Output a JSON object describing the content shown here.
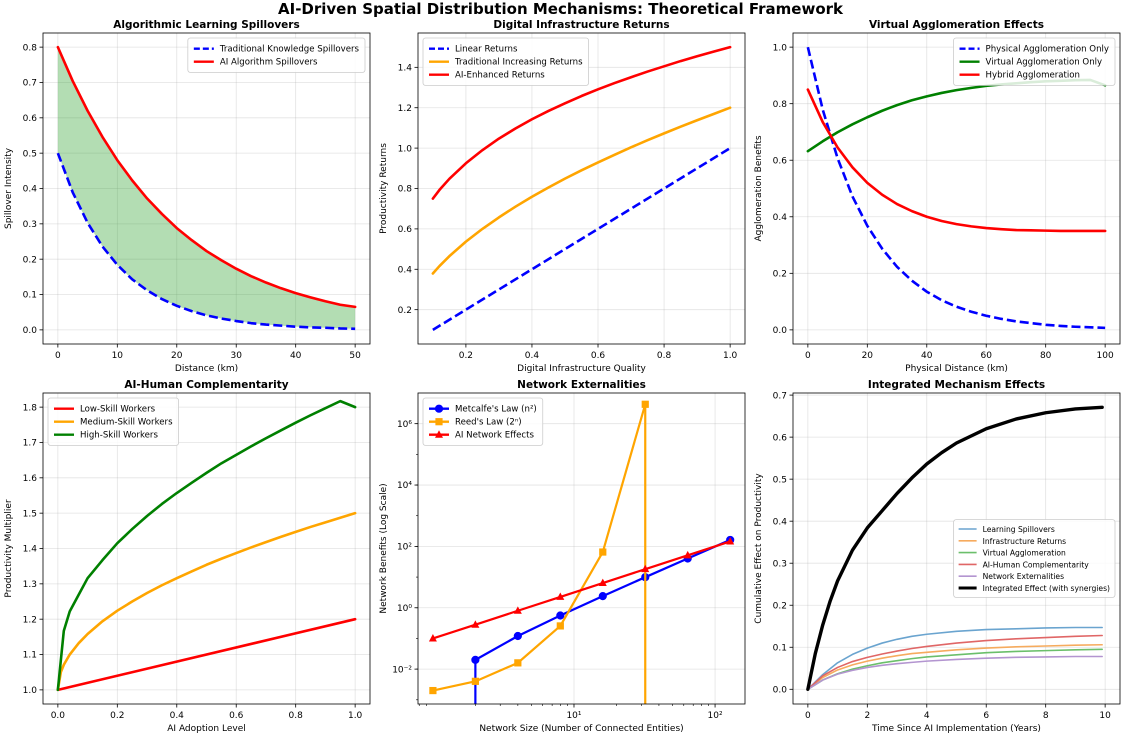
{
  "figure": {
    "suptitle": "AI-Driven Spatial Distribution Mechanisms: Theoretical Framework"
  },
  "chart_data": [
    {
      "id": "p1",
      "type": "line",
      "title": "Algorithmic Learning Spillovers",
      "xlabel": "Distance (km)",
      "ylabel": "Spillover Intensity",
      "xlim": [
        -2.5,
        52.5
      ],
      "ylim": [
        -0.04,
        0.84
      ],
      "xticks": [
        0,
        10,
        20,
        30,
        40,
        50
      ],
      "yticks": [
        0.0,
        0.1,
        0.2,
        0.3,
        0.4,
        0.5,
        0.6,
        0.7,
        0.8
      ],
      "grid": true,
      "legend_position": "upper-right",
      "fill_between": {
        "lower": "Traditional Knowledge Spillovers",
        "upper": "AI Algorithm Spillovers",
        "color": "#2ca02c"
      },
      "series": [
        {
          "name": "Traditional Knowledge Spillovers",
          "color": "#0000ff",
          "dash": true,
          "x": [
            0,
            2.5,
            5,
            7.5,
            10,
            12.5,
            15,
            17.5,
            20,
            22.5,
            25,
            27.5,
            30,
            32.5,
            35,
            37.5,
            40,
            42.5,
            45,
            47.5,
            50
          ],
          "values": [
            0.5,
            0.389,
            0.303,
            0.236,
            0.184,
            0.143,
            0.112,
            0.087,
            0.068,
            0.053,
            0.041,
            0.032,
            0.025,
            0.019,
            0.015,
            0.012,
            0.009,
            0.007,
            0.006,
            0.004,
            0.003
          ]
        },
        {
          "name": "AI Algorithm Spillovers",
          "color": "#ff0000",
          "dash": false,
          "x": [
            0,
            2.5,
            5,
            7.5,
            10,
            12.5,
            15,
            17.5,
            20,
            22.5,
            25,
            27.5,
            30,
            32.5,
            35,
            37.5,
            40,
            42.5,
            45,
            47.5,
            50
          ],
          "values": [
            0.8,
            0.704,
            0.62,
            0.546,
            0.48,
            0.423,
            0.372,
            0.328,
            0.288,
            0.254,
            0.223,
            0.197,
            0.173,
            0.152,
            0.134,
            0.118,
            0.104,
            0.092,
            0.081,
            0.071,
            0.065
          ]
        }
      ]
    },
    {
      "id": "p2",
      "type": "line",
      "title": "Digital Infrastructure Returns",
      "xlabel": "Digital Infrastructure Quality",
      "ylabel": "Productivity Returns",
      "xlim": [
        0.055,
        1.045
      ],
      "ylim": [
        0.03,
        1.57
      ],
      "xticks": [
        0.2,
        0.4,
        0.6,
        0.8,
        1.0
      ],
      "yticks": [
        0.2,
        0.4,
        0.6,
        0.8,
        1.0,
        1.2,
        1.4
      ],
      "grid": true,
      "legend_position": "upper-left",
      "series": [
        {
          "name": "Linear Returns",
          "color": "#0000ff",
          "dash": true,
          "x": [
            0.1,
            1.0
          ],
          "values": [
            0.1,
            1.0
          ]
        },
        {
          "name": "Traditional Increasing Returns",
          "color": "#ffa500",
          "dash": false,
          "x": [
            0.1,
            0.12,
            0.15,
            0.2,
            0.25,
            0.3,
            0.35,
            0.4,
            0.45,
            0.5,
            0.55,
            0.6,
            0.65,
            0.7,
            0.75,
            0.8,
            0.85,
            0.9,
            0.95,
            1.0
          ],
          "values": [
            0.379,
            0.416,
            0.465,
            0.537,
            0.6,
            0.657,
            0.71,
            0.759,
            0.805,
            0.849,
            0.89,
            0.929,
            0.967,
            1.004,
            1.039,
            1.073,
            1.106,
            1.138,
            1.169,
            1.2
          ]
        },
        {
          "name": "AI-Enhanced Returns",
          "color": "#ff0000",
          "dash": false,
          "x": [
            0.1,
            0.12,
            0.15,
            0.2,
            0.25,
            0.3,
            0.35,
            0.4,
            0.45,
            0.5,
            0.55,
            0.6,
            0.65,
            0.7,
            0.75,
            0.8,
            0.85,
            0.9,
            0.95,
            1.0
          ],
          "values": [
            0.75,
            0.793,
            0.848,
            0.925,
            0.99,
            1.047,
            1.097,
            1.143,
            1.184,
            1.222,
            1.258,
            1.291,
            1.322,
            1.351,
            1.379,
            1.405,
            1.431,
            1.455,
            1.478,
            1.5
          ]
        }
      ]
    },
    {
      "id": "p3",
      "type": "line",
      "title": "Virtual Agglomeration Effects",
      "xlabel": "Physical Distance (km)",
      "ylabel": "Agglomeration Benefits",
      "xlim": [
        -5,
        105
      ],
      "ylim": [
        -0.05,
        1.05
      ],
      "xticks": [
        0,
        20,
        40,
        60,
        80,
        100
      ],
      "yticks": [
        0.0,
        0.2,
        0.4,
        0.6,
        0.8,
        1.0
      ],
      "grid": true,
      "legend_position": "upper-right",
      "series": [
        {
          "name": "Physical Agglomeration Only",
          "color": "#0000ff",
          "dash": true,
          "x": [
            0,
            5,
            10,
            15,
            20,
            25,
            30,
            35,
            40,
            45,
            50,
            55,
            60,
            65,
            70,
            75,
            80,
            85,
            90,
            95,
            100
          ],
          "values": [
            1.0,
            0.779,
            0.607,
            0.472,
            0.368,
            0.287,
            0.223,
            0.174,
            0.135,
            0.105,
            0.082,
            0.064,
            0.05,
            0.039,
            0.03,
            0.024,
            0.018,
            0.014,
            0.011,
            0.009,
            0.007
          ]
        },
        {
          "name": "Virtual Agglomeration Only",
          "color": "#008000",
          "dash": false,
          "x": [
            0,
            5,
            10,
            15,
            20,
            25,
            30,
            35,
            40,
            45,
            50,
            55,
            60,
            65,
            70,
            75,
            80,
            85,
            90,
            95,
            100
          ],
          "values": [
            0.632,
            0.667,
            0.699,
            0.727,
            0.752,
            0.775,
            0.795,
            0.812,
            0.826,
            0.838,
            0.848,
            0.856,
            0.863,
            0.868,
            0.872,
            0.876,
            0.879,
            0.881,
            0.883,
            0.884,
            0.865
          ]
        },
        {
          "name": "Hybrid Agglomeration",
          "color": "#ff0000",
          "dash": false,
          "x": [
            0,
            5,
            10,
            15,
            20,
            25,
            30,
            35,
            40,
            45,
            50,
            55,
            60,
            65,
            70,
            75,
            80,
            85,
            90,
            95,
            100
          ],
          "values": [
            0.85,
            0.735,
            0.645,
            0.575,
            0.52,
            0.478,
            0.445,
            0.42,
            0.4,
            0.385,
            0.374,
            0.366,
            0.36,
            0.356,
            0.353,
            0.352,
            0.351,
            0.35,
            0.35,
            0.35,
            0.35
          ]
        }
      ]
    },
    {
      "id": "p4",
      "type": "line",
      "title": "AI-Human Complementarity",
      "xlabel": "AI Adoption Level",
      "ylabel": "Productivity Multiplier",
      "xlim": [
        -0.05,
        1.05
      ],
      "ylim": [
        0.96,
        1.84
      ],
      "xticks": [
        0.0,
        0.2,
        0.4,
        0.6,
        0.8,
        1.0
      ],
      "yticks": [
        1.0,
        1.1,
        1.2,
        1.3,
        1.4,
        1.5,
        1.6,
        1.7,
        1.8
      ],
      "grid": true,
      "legend_position": "upper-left",
      "series": [
        {
          "name": "Low-Skill Workers",
          "color": "#ff0000",
          "dash": false,
          "x": [
            0,
            1
          ],
          "values": [
            1.0,
            1.2
          ]
        },
        {
          "name": "Medium-Skill Workers",
          "color": "#ffa500",
          "dash": false,
          "x": [
            0,
            0.01,
            0.02,
            0.04,
            0.07,
            0.1,
            0.15,
            0.2,
            0.25,
            0.3,
            0.35,
            0.4,
            0.45,
            0.5,
            0.55,
            0.6,
            0.65,
            0.7,
            0.75,
            0.8,
            0.85,
            0.9,
            0.95,
            1.0
          ],
          "values": [
            1.0,
            1.05,
            1.071,
            1.1,
            1.132,
            1.158,
            1.194,
            1.224,
            1.25,
            1.274,
            1.296,
            1.316,
            1.335,
            1.354,
            1.371,
            1.387,
            1.403,
            1.418,
            1.433,
            1.447,
            1.461,
            1.474,
            1.487,
            1.5
          ]
        },
        {
          "name": "High-Skill Workers",
          "color": "#008000",
          "dash": false,
          "x": [
            0,
            0.02,
            0.04,
            0.07,
            0.1,
            0.15,
            0.2,
            0.25,
            0.3,
            0.35,
            0.4,
            0.45,
            0.5,
            0.55,
            0.6,
            0.65,
            0.7,
            0.75,
            0.8,
            0.85,
            0.9,
            0.95,
            1.0
          ],
          "values": [
            1.0,
            1.167,
            1.222,
            1.269,
            1.316,
            1.367,
            1.415,
            1.455,
            1.492,
            1.526,
            1.557,
            1.586,
            1.614,
            1.641,
            1.665,
            1.689,
            1.712,
            1.734,
            1.756,
            1.777,
            1.797,
            1.817,
            1.8
          ]
        }
      ]
    },
    {
      "id": "p5",
      "type": "line",
      "title": "Network Externalities",
      "xlabel": "Network Size (Number of Connected Entities)",
      "ylabel": "Network Benefits (Log Scale)",
      "xscale": "log",
      "yscale": "log",
      "xlim": [
        0.784,
        163
      ],
      "ylim": [
        0.00073,
        10000000
      ],
      "xticks": [
        10,
        100
      ],
      "xtick_labels": [
        "10¹",
        "10²"
      ],
      "yticks": [
        0.01,
        1,
        100,
        10000,
        1000000
      ],
      "ytick_labels": [
        "10⁻²",
        "10⁰",
        "10²",
        "10⁴",
        "10⁶"
      ],
      "grid": true,
      "legend_position": "upper-left",
      "series": [
        {
          "name": "Metcalfe's Law (n²)",
          "color": "#0000ff",
          "marker": "circle",
          "x": [
            2,
            4,
            8,
            16,
            32,
            64,
            128
          ],
          "values": [
            0.02,
            0.12,
            0.56,
            2.4,
            9.92,
            40.3,
            162.6
          ],
          "drop_to_bottom_at": 2
        },
        {
          "name": "Reed's Law (2ⁿ)",
          "color": "#ffa500",
          "marker": "square",
          "x": [
            1,
            2,
            4,
            8,
            16,
            32
          ],
          "values": [
            0.002,
            0.004,
            0.016,
            0.256,
            65.5,
            4290000
          ],
          "drop_to_bottom_at": 32
        },
        {
          "name": "AI Network Effects",
          "color": "#ff0000",
          "marker": "triangle",
          "x": [
            1,
            2,
            4,
            8,
            16,
            32,
            64,
            128
          ],
          "values": [
            0.1,
            0.28,
            0.8,
            2.26,
            6.4,
            18.1,
            51.2,
            144.8
          ]
        }
      ]
    },
    {
      "id": "p6",
      "type": "line",
      "title": "Integrated Mechanism Effects",
      "xlabel": "Time Since AI Implementation (Years)",
      "ylabel": "Cumulative Effect on Productivity",
      "xlim": [
        -0.5,
        10.5
      ],
      "ylim": [
        -0.035,
        0.705
      ],
      "xticks": [
        0,
        2,
        4,
        6,
        8,
        10
      ],
      "yticks": [
        0.0,
        0.1,
        0.2,
        0.3,
        0.4,
        0.5,
        0.6,
        0.7
      ],
      "grid": true,
      "legend_position": "center-right",
      "series": [
        {
          "name": "Learning Spillovers",
          "color": "#6aa4cf",
          "width": 1.6,
          "x": [
            0,
            0.5,
            1,
            1.5,
            2,
            2.5,
            3,
            3.5,
            4,
            5,
            6,
            7,
            8,
            9,
            9.9
          ],
          "values": [
            0,
            0.035,
            0.063,
            0.083,
            0.098,
            0.11,
            0.119,
            0.126,
            0.131,
            0.138,
            0.142,
            0.144,
            0.146,
            0.147,
            0.147
          ]
        },
        {
          "name": "Infrastructure Returns",
          "color": "#f6ab5e",
          "width": 1.6,
          "x": [
            0,
            0.5,
            1,
            1.5,
            2,
            2.5,
            3,
            3.5,
            4,
            5,
            6,
            7,
            8,
            9,
            9.9
          ],
          "values": [
            0,
            0.028,
            0.046,
            0.058,
            0.067,
            0.074,
            0.08,
            0.085,
            0.088,
            0.094,
            0.098,
            0.101,
            0.103,
            0.105,
            0.106
          ]
        },
        {
          "name": "Virtual Agglomeration",
          "color": "#6bbf6b",
          "width": 1.6,
          "x": [
            0,
            0.5,
            1,
            1.5,
            2,
            2.5,
            3,
            3.5,
            4,
            5,
            6,
            7,
            8,
            9,
            9.9
          ],
          "values": [
            0,
            0.022,
            0.037,
            0.048,
            0.056,
            0.063,
            0.068,
            0.073,
            0.077,
            0.082,
            0.087,
            0.09,
            0.092,
            0.094,
            0.095
          ]
        },
        {
          "name": "AI-Human Complementarity",
          "color": "#e06666",
          "width": 1.6,
          "x": [
            0,
            0.5,
            1,
            1.5,
            2,
            2.5,
            3,
            3.5,
            4,
            5,
            6,
            7,
            8,
            9,
            9.9
          ],
          "values": [
            0,
            0.032,
            0.052,
            0.066,
            0.076,
            0.084,
            0.091,
            0.097,
            0.102,
            0.11,
            0.116,
            0.12,
            0.123,
            0.126,
            0.128
          ]
        },
        {
          "name": "Network Externalities",
          "color": "#b395d0",
          "width": 1.6,
          "x": [
            0,
            0.5,
            1,
            1.5,
            2,
            2.5,
            3,
            3.5,
            4,
            5,
            6,
            7,
            8,
            9,
            9.9
          ],
          "values": [
            0,
            0.022,
            0.036,
            0.045,
            0.052,
            0.057,
            0.061,
            0.064,
            0.067,
            0.071,
            0.074,
            0.076,
            0.077,
            0.078,
            0.078
          ]
        },
        {
          "name": "Integrated Effect (with synergies)",
          "color": "#000000",
          "width": 3.4,
          "x": [
            0,
            0.25,
            0.5,
            0.75,
            1,
            1.5,
            2,
            2.5,
            3,
            3.5,
            4,
            4.5,
            5,
            6,
            7,
            8,
            9,
            9.9
          ],
          "values": [
            0,
            0.085,
            0.153,
            0.21,
            0.258,
            0.331,
            0.384,
            0.425,
            0.466,
            0.503,
            0.536,
            0.563,
            0.586,
            0.62,
            0.643,
            0.658,
            0.667,
            0.671
          ]
        }
      ]
    }
  ]
}
